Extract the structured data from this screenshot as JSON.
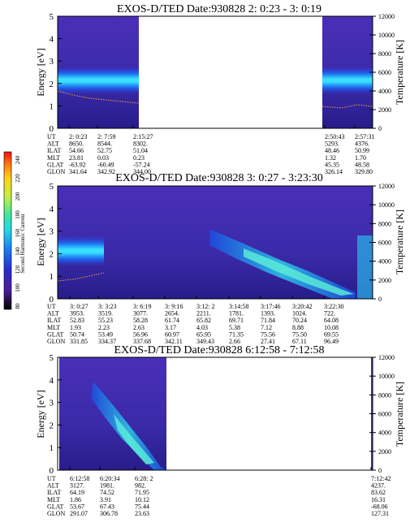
{
  "chart_data": [
    {
      "type": "heatmap",
      "title": "EXOS-D/TED   Date:930828  2: 0:23 - 3: 0:19",
      "ylabel": "Energy [eV]",
      "ylabel_right": "Temperature [K]",
      "ylim": [
        0,
        5
      ],
      "yticks": [
        "0",
        "1",
        "2",
        "3",
        "4",
        "5"
      ],
      "ylim_right": [
        0,
        12000
      ],
      "yticks_right": [
        "0",
        "2000",
        "4000",
        "6000",
        "8000",
        "10000",
        "12000"
      ],
      "data_gap": true,
      "bands": [
        {
          "segment": "2:00:23-2:17:00",
          "energy_center_eV": 2.3,
          "temperature_K_approx": [
            1800,
            1300
          ]
        },
        {
          "segment": "2:50:43-3:00:19",
          "energy_center_eV": 2.3,
          "temperature_K_approx": [
            1400,
            1900
          ]
        }
      ],
      "ephemeris": {
        "row_labels": [
          "UT",
          "ALT",
          "ILAT",
          "MLT",
          "GLAT",
          "GLON"
        ],
        "columns": [
          [
            "2: 0:23",
            "8650.",
            "54.66",
            "23.81",
            "-63.92",
            "341.64"
          ],
          [
            "2: 7:59",
            "8544.",
            "52.75",
            "0.03",
            "-60.49",
            "342.92"
          ],
          [
            "2:15:27",
            "8302.",
            "51.04",
            "0.23",
            "-57.24",
            "344.00"
          ],
          [
            "2:50:43",
            "5293.",
            "48.46",
            "1.32",
            "45.35",
            "326.14"
          ],
          [
            "2:57:31",
            "4376.",
            "50.99",
            "1.70",
            "48.58",
            "329.80"
          ]
        ]
      }
    },
    {
      "type": "heatmap",
      "title": "EXOS-D/TED   Date:930828  3: 0:27 - 3:23:30",
      "ylabel": "Energy [eV]",
      "ylabel_right": "Temperature [K]",
      "ylim": [
        0,
        5
      ],
      "yticks": [
        "0",
        "1",
        "2",
        "3",
        "4",
        "5"
      ],
      "ylim_right": [
        0,
        12000
      ],
      "yticks_right": [
        "0",
        "2000",
        "4000",
        "6000",
        "8000",
        "10000",
        "12000"
      ],
      "colorbar": {
        "label": "Second Harmonic Current",
        "ticks": [
          "80",
          "100",
          "120",
          "140",
          "160",
          "180",
          "200",
          "220",
          "240"
        ]
      },
      "ephemeris": {
        "row_labels": [
          "UT",
          "ALT",
          "ILAT",
          "MLT",
          "GLAT",
          "GLON"
        ],
        "columns": [
          [
            "3: 0:27",
            "3953.",
            "52.83",
            "1.93",
            "50.74",
            "331.85"
          ],
          [
            "3: 3:23",
            "3519.",
            "55.23",
            "2.23",
            "53.49",
            "334.37"
          ],
          [
            "3: 6:19",
            "3077.",
            "58.28",
            "2.63",
            "56.96",
            "337.68"
          ],
          [
            "3: 9:16",
            "2654.",
            "61.74",
            "3.17",
            "60.97",
            "342.11"
          ],
          [
            "3:12: 2",
            "2211.",
            "65.82",
            "4.03",
            "65.95",
            "349.43"
          ],
          [
            "3:14:58",
            "1781.",
            "69.71",
            "5.38",
            "71.35",
            "2.66"
          ],
          [
            "3:17:46",
            "1393.",
            "71.84",
            "7.12",
            "75.56",
            "27.41"
          ],
          [
            "3:20:42",
            "1024.",
            "70.24",
            "8.88",
            "75.50",
            "67.11"
          ],
          [
            "3:22:30",
            "722.",
            "64.08",
            "10.08",
            "69.55",
            "96.49"
          ]
        ]
      }
    },
    {
      "type": "heatmap",
      "title": "EXOS-D/TED   Date:930828  6:12:58 - 7:12:58",
      "ylabel": "Energy [eV]",
      "ylabel_right": "Temperature [K]",
      "ylim": [
        0,
        5
      ],
      "yticks": [
        "0",
        "1",
        "2",
        "3",
        "4",
        "5"
      ],
      "ylim_right": [
        0,
        12000
      ],
      "yticks_right": [
        "0",
        "2000",
        "4000",
        "6000",
        "8000",
        "10000",
        "12000"
      ],
      "data_gap": true,
      "ephemeris": {
        "row_labels": [
          "UT",
          "ALT",
          "ILAT",
          "MLT",
          "GLAT",
          "GLON"
        ],
        "columns": [
          [
            "6:12:58",
            "3127.",
            "64.19",
            "1.86",
            "53.67",
            "291.07"
          ],
          [
            "6:20:34",
            "1981.",
            "74.52",
            "3.91",
            "67.43",
            "306.78"
          ],
          [
            "6:28: 2",
            "982.",
            "71.95",
            "10.12",
            "75.44",
            "23.63"
          ],
          [
            "7:12:42",
            "4237.",
            "83.62",
            "16.31",
            "-68.06",
            "127.31"
          ]
        ]
      }
    }
  ]
}
